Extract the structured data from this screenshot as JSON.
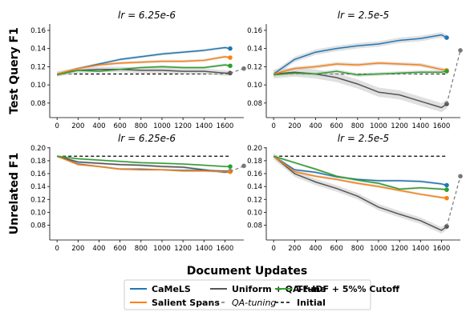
{
  "figure": {
    "xlabel": "Document Updates",
    "legend": {
      "row1": [
        "CaMeLS",
        "Uniform + QA-tune",
        "TF-IDF + 5%% Cutoff"
      ],
      "row2": [
        "Salient Spans",
        "QA-tuning",
        "Initial"
      ]
    }
  },
  "colors": {
    "CaMeLS": "#1f77b4",
    "Salient Spans": "#ff7f0e",
    "Uniform + QA-tune": "#555555",
    "TF-IDF + 5%% Cutoff": "#2ca02c",
    "QA-tuning": "#777777",
    "Initial": "#000000",
    "band": "#cccccc"
  },
  "chart_data": [
    {
      "type": "line",
      "title": "lr = 6.25e-6",
      "ylabel": "Test Query F1",
      "x": [
        0,
        200,
        400,
        600,
        800,
        1000,
        1200,
        1400,
        1600,
        1650
      ],
      "xticks": [
        0,
        200,
        400,
        600,
        800,
        1000,
        1200,
        1400,
        1600
      ],
      "xlim": [
        -70,
        1780
      ],
      "ylim": [
        0.064,
        0.167
      ],
      "yticks": [
        0.08,
        0.1,
        0.12,
        0.14,
        0.16
      ],
      "ytick_labels": [
        "0.08",
        "0.10",
        "0.12",
        "0.14",
        "0.16"
      ],
      "initial": 0.112,
      "series": [
        {
          "name": "Uniform + QA-tune",
          "values": [
            0.112,
            0.116,
            0.117,
            0.117,
            0.116,
            0.116,
            0.115,
            0.115,
            0.113,
            0.113
          ],
          "band": 0.003
        },
        {
          "name": "CaMeLS",
          "values": [
            0.112,
            0.118,
            0.123,
            0.128,
            0.131,
            0.134,
            0.136,
            0.138,
            0.141,
            0.14
          ],
          "band": 0.0015
        },
        {
          "name": "Salient Spans",
          "values": [
            0.112,
            0.118,
            0.122,
            0.124,
            0.125,
            0.126,
            0.126,
            0.127,
            0.131,
            0.13
          ],
          "band": 0.0015
        },
        {
          "name": "TF-IDF + 5%% Cutoff",
          "values": [
            0.111,
            0.116,
            0.115,
            0.117,
            0.119,
            0.12,
            0.119,
            0.119,
            0.122,
            0.121
          ],
          "band": 0.0015
        }
      ],
      "qa_tuning": {
        "x": [
          1650,
          1780
        ],
        "y": [
          0.113,
          0.118
        ]
      }
    },
    {
      "type": "line",
      "title": "lr = 2.5e-5",
      "ylabel": "",
      "x": [
        0,
        200,
        400,
        600,
        800,
        1000,
        1200,
        1400,
        1600,
        1650
      ],
      "xticks": [
        0,
        200,
        400,
        600,
        800,
        1000,
        1200,
        1400,
        1600
      ],
      "xlim": [
        -70,
        1780
      ],
      "ylim": [
        0.064,
        0.167
      ],
      "yticks": [
        0.08,
        0.1,
        0.12,
        0.14,
        0.16
      ],
      "ytick_labels": [
        "0.08",
        "0.10",
        "0.12",
        "0.14",
        "0.16"
      ],
      "initial": 0.112,
      "series": [
        {
          "name": "Uniform + QA-tune",
          "values": [
            0.112,
            0.114,
            0.112,
            0.108,
            0.101,
            0.092,
            0.089,
            0.082,
            0.075,
            0.079
          ],
          "band": 0.005
        },
        {
          "name": "CaMeLS",
          "values": [
            0.112,
            0.128,
            0.136,
            0.14,
            0.143,
            0.145,
            0.149,
            0.151,
            0.155,
            0.152
          ],
          "band": 0.003
        },
        {
          "name": "Salient Spans",
          "values": [
            0.112,
            0.118,
            0.12,
            0.123,
            0.122,
            0.124,
            0.123,
            0.122,
            0.117,
            0.116
          ],
          "band": 0.002
        },
        {
          "name": "TF-IDF + 5%% Cutoff",
          "values": [
            0.111,
            0.113,
            0.112,
            0.115,
            0.111,
            0.112,
            0.113,
            0.114,
            0.114,
            0.115
          ],
          "band": 0.002
        }
      ],
      "qa_tuning": {
        "x": [
          1650,
          1780
        ],
        "y": [
          0.079,
          0.138
        ]
      }
    },
    {
      "type": "line",
      "title": "lr = 6.25e-6",
      "ylabel": "Unrelated F1",
      "x": [
        0,
        200,
        400,
        600,
        800,
        1000,
        1200,
        1400,
        1600,
        1650
      ],
      "xticks": [
        0,
        200,
        400,
        600,
        800,
        1000,
        1200,
        1400,
        1600
      ],
      "xlim": [
        -70,
        1780
      ],
      "ylim": [
        0.057,
        0.201
      ],
      "yticks": [
        0.08,
        0.1,
        0.12,
        0.14,
        0.16,
        0.18,
        0.2
      ],
      "ytick_labels": [
        "0.08",
        "0.10",
        "0.12",
        "0.14",
        "0.16",
        "0.18",
        "0.20"
      ],
      "initial": 0.187,
      "series": [
        {
          "name": "Uniform + QA-tune",
          "values": [
            0.187,
            0.178,
            0.176,
            0.174,
            0.173,
            0.171,
            0.17,
            0.166,
            0.162,
            0.163
          ],
          "band": 0.002
        },
        {
          "name": "CaMeLS",
          "values": [
            0.187,
            0.175,
            0.171,
            0.167,
            0.167,
            0.166,
            0.165,
            0.165,
            0.164,
            0.164
          ],
          "band": 0.0015
        },
        {
          "name": "Salient Spans",
          "values": [
            0.187,
            0.174,
            0.171,
            0.167,
            0.166,
            0.166,
            0.164,
            0.164,
            0.163,
            0.163
          ],
          "band": 0.0015
        },
        {
          "name": "TF-IDF + 5%% Cutoff",
          "values": [
            0.187,
            0.183,
            0.181,
            0.179,
            0.177,
            0.176,
            0.175,
            0.173,
            0.171,
            0.171
          ],
          "band": 0.0015
        }
      ],
      "qa_tuning": {
        "x": [
          1650,
          1780
        ],
        "y": [
          0.163,
          0.172
        ]
      }
    },
    {
      "type": "line",
      "title": "lr = 2.5e-5",
      "ylabel": "",
      "x": [
        0,
        200,
        400,
        600,
        800,
        1000,
        1200,
        1400,
        1600,
        1650
      ],
      "xticks": [
        0,
        200,
        400,
        600,
        800,
        1000,
        1200,
        1400,
        1600
      ],
      "xlim": [
        -70,
        1780
      ],
      "ylim": [
        0.057,
        0.201
      ],
      "yticks": [
        0.08,
        0.1,
        0.12,
        0.14,
        0.16,
        0.18,
        0.2
      ],
      "ytick_labels": [
        "0.08",
        "0.10",
        "0.12",
        "0.14",
        "0.16",
        "0.18",
        "0.20"
      ],
      "initial": 0.187,
      "series": [
        {
          "name": "Uniform + QA-tune",
          "values": [
            0.187,
            0.16,
            0.147,
            0.137,
            0.125,
            0.108,
            0.097,
            0.087,
            0.072,
            0.078
          ],
          "band": 0.005
        },
        {
          "name": "CaMeLS",
          "values": [
            0.187,
            0.166,
            0.162,
            0.155,
            0.151,
            0.149,
            0.149,
            0.148,
            0.144,
            0.142
          ],
          "band": 0.002
        },
        {
          "name": "Salient Spans",
          "values": [
            0.187,
            0.163,
            0.156,
            0.151,
            0.145,
            0.14,
            0.134,
            0.128,
            0.123,
            0.122
          ],
          "band": 0.002
        },
        {
          "name": "TF-IDF + 5%% Cutoff",
          "values": [
            0.187,
            0.177,
            0.167,
            0.156,
            0.15,
            0.145,
            0.136,
            0.138,
            0.136,
            0.135
          ],
          "band": 0.002
        }
      ],
      "qa_tuning": {
        "x": [
          1650,
          1780
        ],
        "y": [
          0.078,
          0.156
        ]
      }
    }
  ]
}
